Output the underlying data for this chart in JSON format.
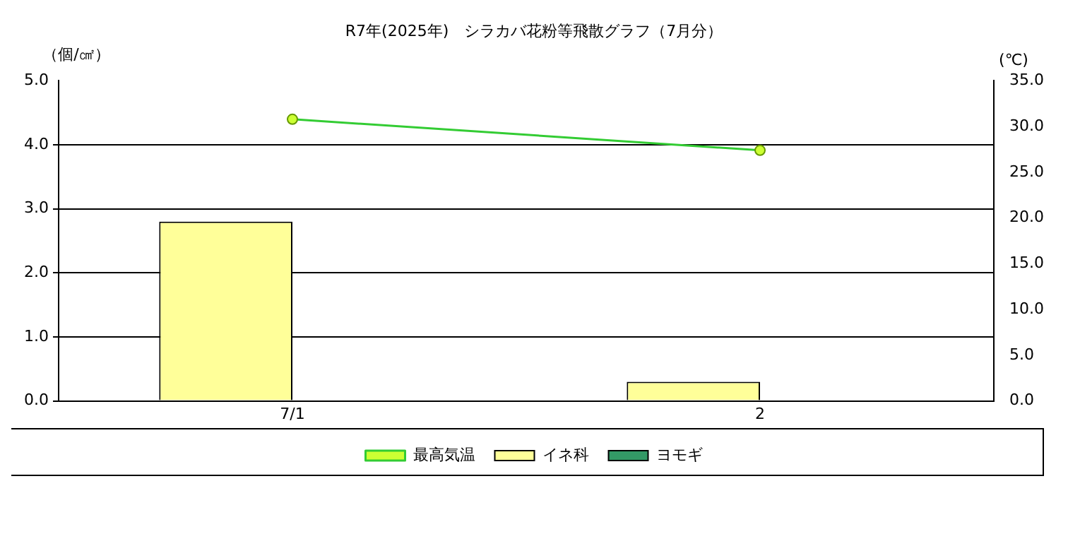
{
  "chart_data": {
    "type": "bar",
    "title": "R7年(2025年)　シラカバ花粉等飛散グラフ（7月分）",
    "ylabel": "（個/㎠）",
    "y2label": "(℃)",
    "categories": [
      "7/1",
      "2"
    ],
    "series": [
      {
        "name": "イネ科",
        "color": "#ffff99",
        "values": [
          2.8,
          0.3
        ]
      },
      {
        "name": "ヨモギ",
        "color": "#339966",
        "values": [
          0,
          0
        ]
      },
      {
        "name": "最高気温",
        "type": "line",
        "axis": "y2",
        "color": "#33cc33",
        "marker": "circle",
        "values": [
          30.8,
          27.4
        ]
      }
    ],
    "ylim": [
      0,
      5
    ],
    "yticks": [
      {
        "value": 0,
        "label": "0.0"
      },
      {
        "value": 1,
        "label": "1.0"
      },
      {
        "value": 2,
        "label": "2.0"
      },
      {
        "value": 3,
        "label": "3.0"
      },
      {
        "value": 4,
        "label": "4.0"
      },
      {
        "value": 5,
        "label": "5.0"
      }
    ],
    "y2lim": [
      0,
      35
    ],
    "y2ticks": [
      {
        "value": 0,
        "label": "0.0"
      },
      {
        "value": 5,
        "label": "5.0"
      },
      {
        "value": 10,
        "label": "10.0"
      },
      {
        "value": 15,
        "label": "15.0"
      },
      {
        "value": 20,
        "label": "20.0"
      },
      {
        "value": 25,
        "label": "25.0"
      },
      {
        "value": 30,
        "label": "30.0"
      },
      {
        "value": 35,
        "label": "35.0"
      }
    ],
    "grid": "y",
    "legend": "bottom"
  }
}
